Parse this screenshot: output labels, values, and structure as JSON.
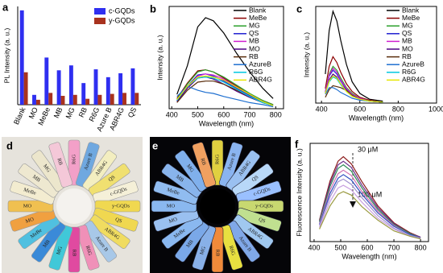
{
  "chart_data": [
    {
      "type": "bar",
      "label": "a",
      "ylabel": "PL Intensity (a. u.)",
      "categories": [
        "Blank",
        "MO",
        "MeBe",
        "MB",
        "MG",
        "RB",
        "R6G",
        "Azure B",
        "ABR4G",
        "QS"
      ],
      "series": [
        {
          "name": "c-GQDs",
          "color": "#2f2ff0",
          "values": [
            96,
            10,
            48,
            35,
            40,
            22,
            36,
            28,
            32,
            37
          ]
        },
        {
          "name": "y-GQDs",
          "color": "#a8321e",
          "values": [
            33,
            5,
            12,
            9,
            10,
            6,
            10,
            11,
            12,
            12
          ]
        }
      ],
      "ylim": [
        0,
        100
      ],
      "legend": "upper right"
    },
    {
      "type": "line",
      "label": "b",
      "xlabel": "Wavelength (nm)",
      "ylabel": "Intensity (a. u.)",
      "x": [
        420,
        460,
        500,
        530,
        560,
        600,
        650,
        700,
        750,
        790
      ],
      "series": [
        {
          "name": "Blank",
          "color": "#000000",
          "values": [
            14,
            42,
            80,
            89,
            86,
            74,
            54,
            36,
            20,
            10
          ]
        },
        {
          "name": "MeBe",
          "color": "#8b0000",
          "values": [
            10,
            25,
            37,
            38,
            36,
            30,
            22,
            14,
            8,
            4
          ]
        },
        {
          "name": "MG",
          "color": "#2ca02c",
          "values": [
            9,
            24,
            36,
            38,
            36,
            31,
            23,
            15,
            8,
            4
          ]
        },
        {
          "name": "QS",
          "color": "#1f1fd0",
          "values": [
            8,
            22,
            33,
            34,
            32,
            27,
            20,
            13,
            7,
            3
          ]
        },
        {
          "name": "MB",
          "color": "#d020d0",
          "values": [
            8,
            21,
            32,
            34,
            33,
            29,
            21,
            14,
            7,
            3
          ]
        },
        {
          "name": "MO",
          "color": "#4b0082",
          "values": [
            7,
            20,
            30,
            31,
            29,
            24,
            17,
            11,
            6,
            3
          ]
        },
        {
          "name": "RB",
          "color": "#5a2d0c",
          "values": [
            6,
            18,
            26,
            27,
            27,
            24,
            18,
            12,
            6,
            3
          ]
        },
        {
          "name": "AzureB",
          "color": "#1e6fd0",
          "values": [
            12,
            22,
            18,
            16,
            15,
            12,
            9,
            6,
            4,
            2
          ]
        },
        {
          "name": "R6G",
          "color": "#00c8e0",
          "values": [
            8,
            22,
            30,
            31,
            30,
            26,
            19,
            12,
            6,
            3
          ]
        },
        {
          "name": "ABR4G",
          "color": "#e6e600",
          "values": [
            9,
            22,
            31,
            32,
            31,
            28,
            21,
            14,
            7,
            3
          ]
        }
      ],
      "xlim": [
        390,
        830
      ],
      "xticks": [
        400,
        500,
        600,
        700,
        800
      ],
      "ylim": [
        0,
        100
      ],
      "legend": "upper right"
    },
    {
      "type": "line",
      "label": "c",
      "xlabel": "Wavelength (nm)",
      "ylabel": "Intensity (a. u.)",
      "x": [
        420,
        440,
        460,
        480,
        500,
        530,
        560,
        600,
        650,
        720
      ],
      "series": [
        {
          "name": "Blank",
          "color": "#000000",
          "values": [
            30,
            75,
            95,
            85,
            65,
            40,
            22,
            10,
            4,
            2
          ]
        },
        {
          "name": "MeBe",
          "color": "#8b0000",
          "values": [
            15,
            38,
            48,
            42,
            32,
            20,
            12,
            6,
            3,
            1
          ]
        },
        {
          "name": "MG",
          "color": "#2ca02c",
          "values": [
            12,
            30,
            38,
            34,
            26,
            16,
            10,
            5,
            2,
            1
          ]
        },
        {
          "name": "QS",
          "color": "#1f1fd0",
          "values": [
            11,
            28,
            34,
            30,
            23,
            14,
            8,
            4,
            2,
            1
          ]
        },
        {
          "name": "MB",
          "color": "#d020d0",
          "values": [
            12,
            29,
            36,
            32,
            24,
            15,
            9,
            5,
            2,
            1
          ]
        },
        {
          "name": "MO",
          "color": "#4b0082",
          "values": [
            10,
            24,
            30,
            27,
            20,
            13,
            8,
            4,
            2,
            1
          ]
        },
        {
          "name": "RB",
          "color": "#5a2d0c",
          "values": [
            6,
            14,
            18,
            17,
            16,
            13,
            8,
            4,
            2,
            1
          ]
        },
        {
          "name": "AzureB",
          "color": "#1e6fd0",
          "values": [
            9,
            16,
            16,
            14,
            11,
            8,
            5,
            3,
            2,
            1
          ]
        },
        {
          "name": "R6G",
          "color": "#00c8e0",
          "values": [
            10,
            22,
            27,
            25,
            19,
            12,
            7,
            4,
            2,
            1
          ]
        },
        {
          "name": "ABR4G",
          "color": "#e6e600",
          "values": [
            10,
            23,
            28,
            26,
            20,
            12,
            7,
            4,
            2,
            1
          ]
        }
      ],
      "xlim": [
        370,
        1000
      ],
      "xticks": [
        400,
        600,
        800,
        1000
      ],
      "ylim": [
        0,
        100
      ],
      "legend": "upper right"
    },
    {
      "type": "line",
      "label": "f",
      "xlabel": "Wavelength (nm)",
      "ylabel": "Fluorescence Intensity (a. u.)",
      "annotations": [
        "30 μM",
        "100 μM"
      ],
      "x": [
        420,
        460,
        490,
        510,
        540,
        580,
        640,
        700,
        760,
        800
      ],
      "series": [
        {
          "color": "#8b1a1a",
          "values": [
            24,
            68,
            90,
            95,
            87,
            67,
            40,
            21,
            10,
            5
          ]
        },
        {
          "color": "#6a2c8a",
          "values": [
            23,
            65,
            86,
            90,
            83,
            63,
            38,
            20,
            9,
            5
          ]
        },
        {
          "color": "#2e8b57",
          "values": [
            22,
            62,
            82,
            86,
            79,
            60,
            36,
            19,
            9,
            4
          ]
        },
        {
          "color": "#d070b0",
          "values": [
            20,
            58,
            76,
            80,
            74,
            56,
            34,
            18,
            8,
            4
          ]
        },
        {
          "color": "#3050c0",
          "values": [
            19,
            54,
            71,
            75,
            69,
            53,
            32,
            17,
            8,
            4
          ]
        },
        {
          "color": "#a090d0",
          "values": [
            18,
            50,
            67,
            70,
            64,
            49,
            29,
            15,
            7,
            4
          ]
        },
        {
          "color": "#c8a0e0",
          "values": [
            16,
            45,
            60,
            63,
            58,
            44,
            26,
            14,
            6,
            3
          ]
        },
        {
          "color": "#9a9a40",
          "values": [
            14,
            40,
            53,
            56,
            52,
            39,
            24,
            12,
            6,
            3
          ]
        }
      ],
      "xlim": [
        385,
        830
      ],
      "xticks": [
        400,
        500,
        600,
        700,
        800
      ],
      "ylim": [
        0,
        110
      ]
    }
  ],
  "photos": [
    {
      "label": "d",
      "background": "#e6e3dc",
      "tubes": [
        {
          "label": "R6G",
          "color": "#f3a0c8"
        },
        {
          "label": "Azure B",
          "color": "#6fa8e0"
        },
        {
          "label": "ABR4G",
          "color": "#f3eec0"
        },
        {
          "label": "QS",
          "color": "#f0e070"
        },
        {
          "label": "c-GQDs",
          "color": "#f5f0d8"
        },
        {
          "label": "y-GQDs",
          "color": "#f0d850"
        },
        {
          "label": "QS",
          "color": "#f0d850"
        },
        {
          "label": "ABR4G",
          "color": "#f0dc60"
        },
        {
          "label": "Azure B",
          "color": "#a8c8e8"
        },
        {
          "label": "R6G",
          "color": "#f090b8"
        },
        {
          "label": "RB",
          "color": "#e04aa0"
        },
        {
          "label": "MG",
          "color": "#40c8d8"
        },
        {
          "label": "MB",
          "color": "#3a8ad8"
        },
        {
          "label": "MeBe",
          "color": "#50c0e0"
        },
        {
          "label": "MO",
          "color": "#f0a040"
        },
        {
          "label": "MO",
          "color": "#f0c050"
        },
        {
          "label": "MeBe",
          "color": "#f3ecd0"
        },
        {
          "label": "MB",
          "color": "#eee8d0"
        },
        {
          "label": "MG",
          "color": "#ece6cc"
        },
        {
          "label": "RB",
          "color": "#f4c8d8"
        }
      ]
    },
    {
      "label": "e",
      "background": "#050508",
      "tubes": [
        {
          "label": "R6G",
          "color": "#e0d040"
        },
        {
          "label": "Azure B",
          "color": "#8ab4f0"
        },
        {
          "label": "ABR4G",
          "color": "#9ac0f0"
        },
        {
          "label": "QS",
          "color": "#b8d8f8"
        },
        {
          "label": "c-GQDs",
          "color": "#9ac0ff"
        },
        {
          "label": "y-GQDs",
          "color": "#c8d870"
        },
        {
          "label": "QS",
          "color": "#c0e090"
        },
        {
          "label": "ABR4G",
          "color": "#a0c8f0"
        },
        {
          "label": "Azure B",
          "color": "#80a8e8"
        },
        {
          "label": "R6G",
          "color": "#e8e040"
        },
        {
          "label": "RB",
          "color": "#f08a3a"
        },
        {
          "label": "MG",
          "color": "#88b0e8"
        },
        {
          "label": "MB",
          "color": "#7aa8e8"
        },
        {
          "label": "MeBe",
          "color": "#8ab8f0"
        },
        {
          "label": "MO",
          "color": "#9ac0f0"
        },
        {
          "label": "MO",
          "color": "#8ab8f0"
        },
        {
          "label": "MeBe",
          "color": "#90bcf0"
        },
        {
          "label": "MB",
          "color": "#88b4ec"
        },
        {
          "label": "MG",
          "color": "#80b0ec"
        },
        {
          "label": "RB",
          "color": "#f0a060"
        }
      ]
    }
  ]
}
